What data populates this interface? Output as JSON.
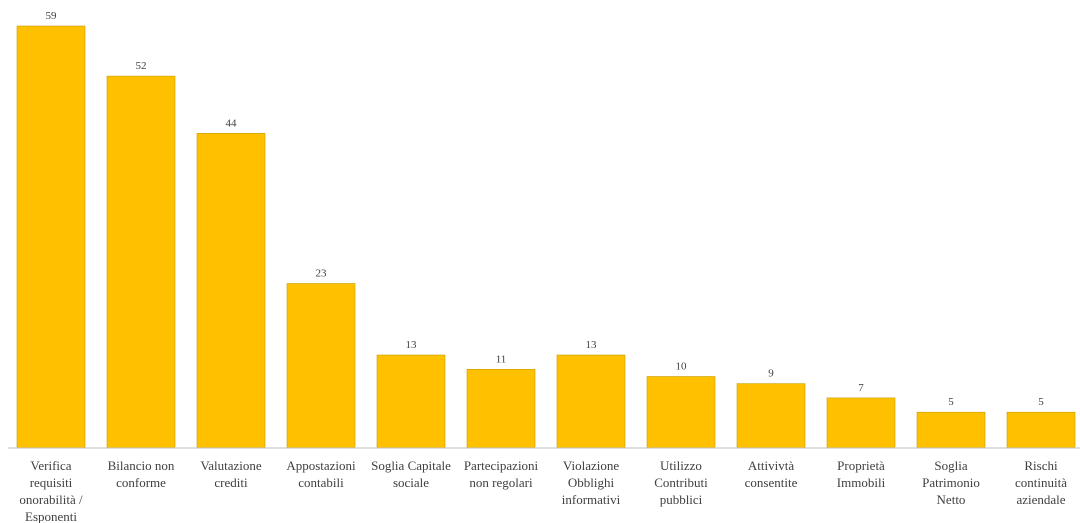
{
  "chart_data": {
    "type": "bar",
    "categories": [
      "Verifica requisiti onorabilità / Esponenti",
      "Bilancio non conforme",
      "Valutazione crediti",
      "Appostazioni contabili",
      "Soglia Capitale sociale",
      "Partecipazioni non regolari",
      "Violazione Obblighi informativi",
      "Utilizzo Contributi pubblici",
      "Attivivtà consentite",
      "Proprietà Immobili",
      "Soglia Patrimonio Netto",
      "Rischi continuità aziendale"
    ],
    "category_lines": [
      [
        "Verifica",
        "requisiti",
        "onorabilità /",
        "Esponenti"
      ],
      [
        "Bilancio non",
        "conforme"
      ],
      [
        "Valutazione",
        "crediti"
      ],
      [
        "Appostazioni",
        "contabili"
      ],
      [
        "Soglia Capitale",
        "sociale"
      ],
      [
        "Partecipazioni",
        "non regolari"
      ],
      [
        "Violazione",
        "Obblighi",
        "informativi"
      ],
      [
        "Utilizzo",
        "Contributi",
        "pubblici"
      ],
      [
        "Attivivtà",
        "consentite"
      ],
      [
        "Proprietà",
        "Immobili"
      ],
      [
        "Soglia",
        "Patrimonio",
        "Netto"
      ],
      [
        "Rischi",
        "continuità",
        "aziendale"
      ]
    ],
    "values": [
      59,
      52,
      44,
      23,
      13,
      11,
      13,
      10,
      9,
      7,
      5,
      5
    ],
    "title": "",
    "xlabel": "",
    "ylabel": "",
    "ylim": [
      0,
      59
    ],
    "grid": false,
    "legend": "none",
    "data_labels": true,
    "bar_color": "#FFC000"
  }
}
